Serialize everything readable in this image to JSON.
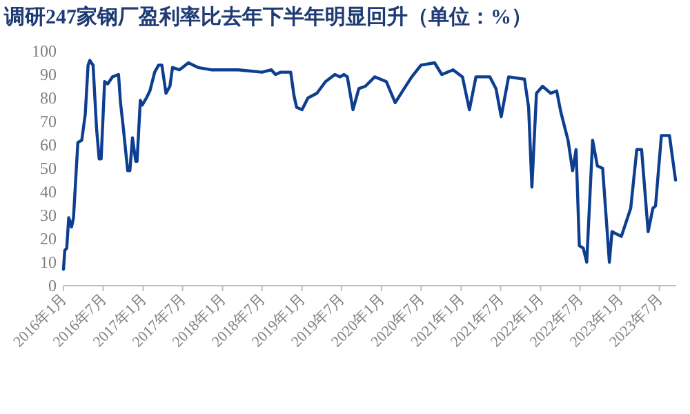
{
  "chart_data": {
    "type": "line",
    "title": "调研247家钢厂盈利率比去年下半年明显回升（单位：%）",
    "x": [
      "2016-01-01",
      "2016-01-07",
      "2016-01-16",
      "2016-01-25",
      "2016-02-07",
      "2016-02-16",
      "2016-03-07",
      "2016-03-25",
      "2016-04-10",
      "2016-04-23",
      "2016-05-01",
      "2016-05-16",
      "2016-06-01",
      "2016-06-13",
      "2016-06-22",
      "2016-07-08",
      "2016-07-22",
      "2016-08-13",
      "2016-09-10",
      "2016-09-19",
      "2016-10-01",
      "2016-10-22",
      "2016-11-01",
      "2016-11-13",
      "2016-11-28",
      "2016-12-04",
      "2016-12-19",
      "2016-12-28",
      "2017-01-16",
      "2017-02-01",
      "2017-02-23",
      "2017-03-13",
      "2017-03-28",
      "2017-04-16",
      "2017-05-04",
      "2017-05-16",
      "2017-06-16",
      "2017-07-01",
      "2017-07-28",
      "2017-09-10",
      "2017-11-10",
      "2018-03-16",
      "2018-07-01",
      "2018-08-13",
      "2018-09-01",
      "2018-09-25",
      "2018-11-10",
      "2018-11-25",
      "2018-12-07",
      "2019-01-01",
      "2019-01-28",
      "2019-03-10",
      "2019-04-19",
      "2019-06-01",
      "2019-06-25",
      "2019-07-13",
      "2019-07-28",
      "2019-08-23",
      "2019-09-19",
      "2019-10-19",
      "2019-12-01",
      "2020-01-23",
      "2020-03-04",
      "2020-04-07",
      "2020-05-19",
      "2020-07-01",
      "2020-09-01",
      "2020-10-04",
      "2020-11-25",
      "2021-01-07",
      "2021-02-08",
      "2021-03-10",
      "2021-05-13",
      "2021-06-10",
      "2021-07-04",
      "2021-08-07",
      "2021-10-19",
      "2021-11-07",
      "2021-11-22",
      "2021-12-13",
      "2022-01-10",
      "2022-02-16",
      "2022-03-16",
      "2022-04-04",
      "2022-05-07",
      "2022-05-28",
      "2022-06-13",
      "2022-06-28",
      "2022-07-16",
      "2022-08-01",
      "2022-08-28",
      "2022-09-19",
      "2022-10-13",
      "2022-11-13",
      "2022-11-25",
      "2023-01-07",
      "2023-02-19",
      "2023-03-19",
      "2023-04-10",
      "2023-05-10",
      "2023-06-01",
      "2023-06-13",
      "2023-07-10",
      "2023-08-16",
      "2023-09-13"
    ],
    "series": [
      {
        "color": "#0d3e8f",
        "values": [
          7,
          15,
          16,
          29,
          25,
          29,
          61,
          62,
          73,
          94,
          96,
          94,
          67,
          54,
          54,
          87,
          86,
          89,
          90,
          78,
          68,
          49,
          49,
          63,
          53,
          53,
          79,
          77,
          80,
          83,
          91,
          94,
          94,
          82,
          85,
          93,
          92,
          93,
          95,
          93,
          92,
          92,
          91,
          92,
          90,
          91,
          91,
          81,
          76,
          75,
          80,
          82,
          87,
          90,
          89,
          90,
          89,
          75,
          84,
          85,
          89,
          87,
          78,
          83,
          89,
          94,
          95,
          90,
          92,
          89,
          75,
          89,
          89,
          84,
          72,
          89,
          88,
          76,
          42,
          82,
          85,
          82,
          83,
          74,
          62,
          49,
          58,
          17,
          16,
          10,
          62,
          51,
          50,
          10,
          23,
          21,
          33,
          58,
          58,
          23,
          33,
          34,
          64,
          64,
          45
        ]
      }
    ],
    "xlim": [
      "2016-01-01",
      "2023-09-16"
    ],
    "xticks": [
      {
        "value": "2016-01",
        "label": "2016年1月"
      },
      {
        "value": "2016-07",
        "label": "2016年7月"
      },
      {
        "value": "2017-01",
        "label": "2017年1月"
      },
      {
        "value": "2017-07",
        "label": "2017年7月"
      },
      {
        "value": "2018-01",
        "label": "2018年1月"
      },
      {
        "value": "2018-07",
        "label": "2018年7月"
      },
      {
        "value": "2019-01",
        "label": "2019年1月"
      },
      {
        "value": "2019-07",
        "label": "2019年7月"
      },
      {
        "value": "2020-01",
        "label": "2020年1月"
      },
      {
        "value": "2020-07",
        "label": "2020年7月"
      },
      {
        "value": "2021-01",
        "label": "2021年1月"
      },
      {
        "value": "2021-07",
        "label": "2021年7月"
      },
      {
        "value": "2022-01",
        "label": "2022年1月"
      },
      {
        "value": "2022-07",
        "label": "2022年7月"
      },
      {
        "value": "2023-01",
        "label": "2023年1月"
      },
      {
        "value": "2023-07",
        "label": "2023年7月"
      }
    ],
    "ylim": [
      0,
      100
    ],
    "yticks": [
      0,
      10,
      20,
      30,
      40,
      50,
      60,
      70,
      80,
      90,
      100
    ],
    "grid": false,
    "marker": "none",
    "line_style": "solid"
  }
}
